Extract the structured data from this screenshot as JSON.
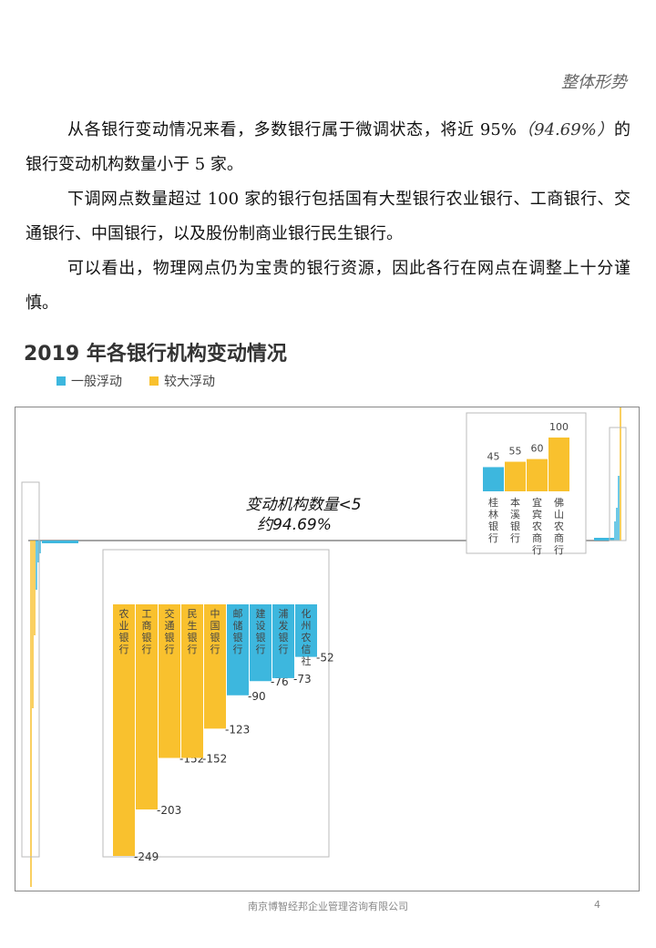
{
  "header": {
    "section": "整体形势"
  },
  "paragraphs": {
    "p1_a": "从各银行变动情况来看，多数银行属于微调状态，将近 95%",
    "p1_em": "（94.69%）",
    "p1_b": "的银行变动机构数量小于 5 家。",
    "p2": "下调网点数量超过 100 家的银行包括国有大型银行农业银行、工商银行、交通银行、中国银行，以及股份制商业银行民生银行。",
    "p3": "可以看出，物理网点仍为宝贵的银行资源，因此各行在网点在调整上十分谨慎。"
  },
  "chart": {
    "title": "2019 年各银行机构变动情况",
    "annotation_line1": "变动机构数量<5",
    "annotation_line2": "约94.69%"
  },
  "colors": {
    "general": "#3DB7DE",
    "large": "#F9C12E"
  },
  "chart_data": {
    "type": "bar",
    "title": "2019 年各银行机构变动情况",
    "legend": [
      "一般浮动",
      "较大浮动"
    ],
    "legend_placement": "top-left",
    "annotation": "变动机构数量<5 约94.69%",
    "decreases": [
      {
        "name": "农业银行",
        "value": -249,
        "series": "较大浮动"
      },
      {
        "name": "工商银行",
        "value": -203,
        "series": "较大浮动"
      },
      {
        "name": "交通银行",
        "value": -152,
        "series": "较大浮动"
      },
      {
        "name": "民生银行",
        "value": -152,
        "series": "较大浮动"
      },
      {
        "name": "中国银行",
        "value": -123,
        "series": "较大浮动"
      },
      {
        "name": "邮储银行",
        "value": -90,
        "series": "一般浮动"
      },
      {
        "name": "建设银行",
        "value": -76,
        "series": "一般浮动"
      },
      {
        "name": "浦发银行",
        "value": -73,
        "series": "一般浮动"
      },
      {
        "name": "化州农信社",
        "value": -52,
        "series": "一般浮动"
      }
    ],
    "increases": [
      {
        "name": "桂林银行",
        "value": 45,
        "series": "一般浮动"
      },
      {
        "name": "本溪银行",
        "value": 55,
        "series": "较大浮动"
      },
      {
        "name": "宜宾农商行",
        "value": 60,
        "series": "较大浮动"
      },
      {
        "name": "佛山农商行",
        "value": 100,
        "series": "较大浮动"
      }
    ]
  },
  "footer": {
    "company": "南京博智经邦企业管理咨询有限公司",
    "page": "4"
  }
}
